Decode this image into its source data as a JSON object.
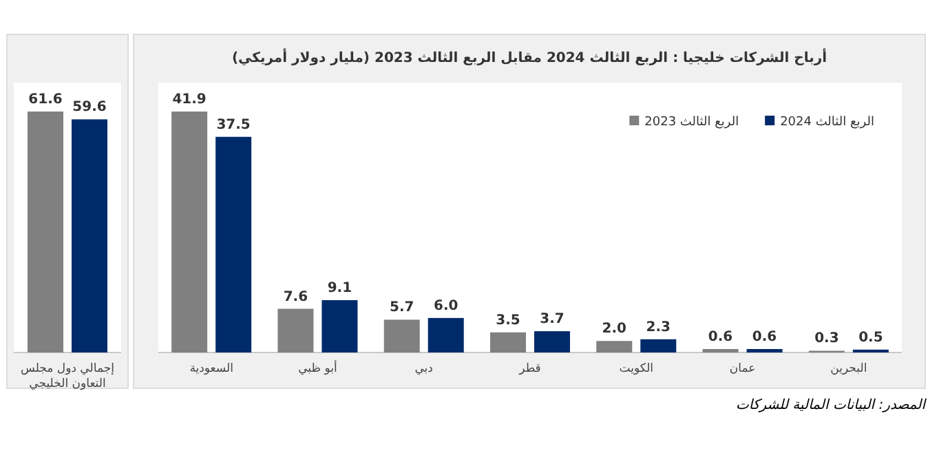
{
  "chart_data": [
    {
      "type": "bar",
      "categories": [
        "إجمالي دول مجلس التعاون الخليجي"
      ],
      "series": [
        {
          "color": "#808080",
          "values": [
            61.6
          ],
          "value_labels": [
            "61.6"
          ]
        },
        {
          "color": "#002b6b",
          "values": [
            59.6
          ],
          "value_labels": [
            "59.6"
          ]
        }
      ],
      "tick_labels": "x"
    },
    {
      "type": "bar",
      "title": "أرباح الشركات خليجيا : الربع الثالث 2024 مقابل الربع الثالث 2023 (مليار دولار أمريكي)",
      "categories": [
        "السعودية",
        "أبو ظبي",
        "دبي",
        "قطر",
        "الكويت",
        "عمان",
        "البحرين"
      ],
      "series": [
        {
          "name": "الربع الثالث 2023",
          "color": "#808080",
          "values": [
            41.9,
            7.6,
            5.7,
            3.5,
            2.0,
            0.6,
            0.3
          ],
          "value_labels": [
            "41.9",
            "7.6",
            "5.7",
            "3.5",
            "2.0",
            "0.6",
            "0.3"
          ]
        },
        {
          "name": "الربع الثالث 2024",
          "color": "#002b6b",
          "values": [
            37.5,
            9.1,
            6.0,
            3.7,
            2.3,
            0.6,
            0.5
          ],
          "value_labels": [
            "37.5",
            "9.1",
            "6.0",
            "3.7",
            "2.3",
            "0.6",
            "0.5"
          ]
        }
      ],
      "tick_labels": "x",
      "legend": "top right",
      "annotations": [
        "المصدر: البيانات المالية للشركات"
      ]
    }
  ]
}
